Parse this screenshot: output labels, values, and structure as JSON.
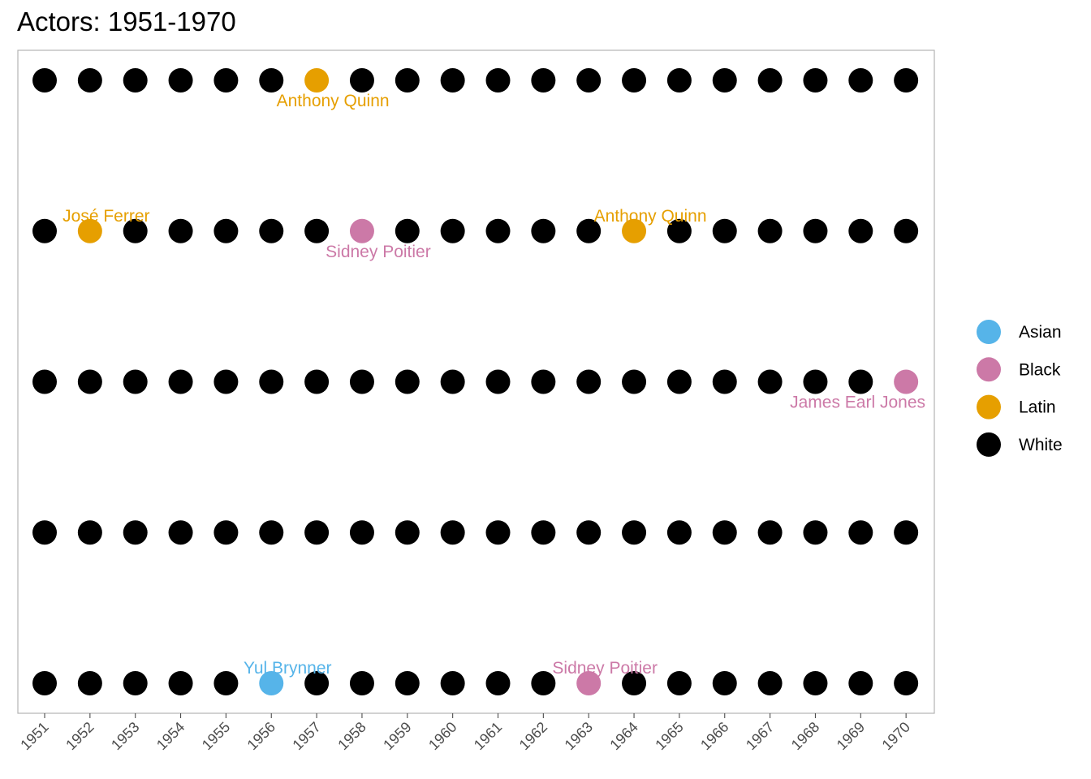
{
  "chart_data": {
    "type": "scatter",
    "title": "Actors: 1951-1970",
    "xlabel": "",
    "ylabel": "",
    "x": [
      "1951",
      "1952",
      "1953",
      "1954",
      "1955",
      "1956",
      "1957",
      "1958",
      "1959",
      "1960",
      "1961",
      "1962",
      "1963",
      "1964",
      "1965",
      "1966",
      "1967",
      "1968",
      "1969",
      "1970"
    ],
    "rows": 5,
    "default_category": "White",
    "grid": false,
    "legend_position": "right",
    "legend": [
      {
        "name": "Asian",
        "color": "#56B4E9"
      },
      {
        "name": "Black",
        "color": "#CC79A7"
      },
      {
        "name": "Latin",
        "color": "#E69F00"
      },
      {
        "name": "White",
        "color": "#000000"
      }
    ],
    "highlights": [
      {
        "year": "1957",
        "row": 1,
        "category": "Latin",
        "label": "Anthony Quinn",
        "label_pos": "below"
      },
      {
        "year": "1952",
        "row": 2,
        "category": "Latin",
        "label": "José Ferrer",
        "label_pos": "above"
      },
      {
        "year": "1958",
        "row": 2,
        "category": "Black",
        "label": "Sidney Poitier",
        "label_pos": "below"
      },
      {
        "year": "1964",
        "row": 2,
        "category": "Latin",
        "label": "Anthony Quinn",
        "label_pos": "above"
      },
      {
        "year": "1970",
        "row": 3,
        "category": "Black",
        "label": "James Earl Jones",
        "label_pos": "below"
      },
      {
        "year": "1956",
        "row": 5,
        "category": "Asian",
        "label": "Yul Brynner",
        "label_pos": "above"
      },
      {
        "year": "1963",
        "row": 5,
        "category": "Black",
        "label": "Sidney Poitier",
        "label_pos": "above"
      }
    ]
  }
}
